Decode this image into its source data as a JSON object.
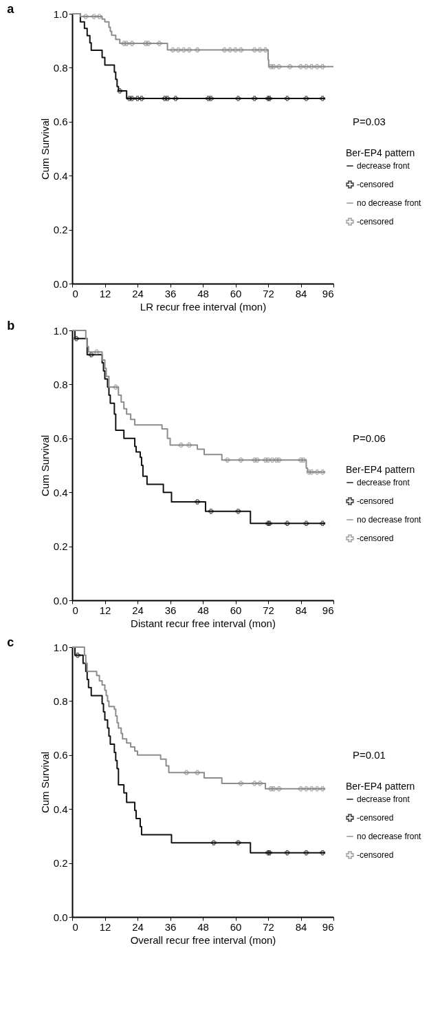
{
  "chart_data": [
    {
      "type": "step",
      "title": "a",
      "xlabel": "LR recur free interval (mon)",
      "ylabel": "Cum Survival",
      "legend_title": "Ber-EP4 pattern",
      "legend": "right",
      "grid": false,
      "annotations": [
        "P=0.03"
      ],
      "xlim": [
        0,
        96
      ],
      "xticks": [
        0,
        12,
        24,
        36,
        48,
        60,
        72,
        84,
        96
      ],
      "ylim": [
        0,
        1
      ],
      "yticks": [
        {
          "value": 0,
          "label": "0.0"
        },
        {
          "value": 0.2,
          "label": "0.2"
        },
        {
          "value": 0.4,
          "label": "0.4"
        },
        {
          "value": 0.6,
          "label": "0.6"
        },
        {
          "value": 0.8,
          "label": "0.8"
        },
        {
          "value": 1,
          "label": "1.0"
        }
      ],
      "series": [
        {
          "name": "decrease front",
          "color": "#111111",
          "x": [
            0,
            3,
            4.5,
            5.5,
            6.5,
            7,
            11,
            12,
            15.5,
            16,
            16.5,
            17,
            20,
            93
          ],
          "values": [
            1.0,
            0.97,
            0.946,
            0.919,
            0.892,
            0.865,
            0.838,
            0.81,
            0.784,
            0.757,
            0.73,
            0.714,
            0.686,
            0.686
          ]
        },
        {
          "name": "-censored",
          "type": "scatter",
          "marker": "cross",
          "color": "#111111",
          "x": [
            17.5,
            21,
            22,
            24,
            25.5,
            34,
            35,
            38,
            50,
            51,
            61,
            67,
            72,
            72.5,
            79,
            86,
            92
          ],
          "values": [
            0.714,
            0.686,
            0.686,
            0.686,
            0.686,
            0.686,
            0.686,
            0.686,
            0.686,
            0.686,
            0.686,
            0.686,
            0.686,
            0.686,
            0.686,
            0.686,
            0.686
          ]
        },
        {
          "name": "no decrease front",
          "color": "#8c8c8c",
          "x": [
            0,
            3,
            11,
            12,
            13.5,
            14,
            14.5,
            16,
            17.5,
            35,
            72,
            72.2,
            96
          ],
          "values": [
            1.0,
            0.99,
            0.98,
            0.97,
            0.95,
            0.935,
            0.92,
            0.905,
            0.89,
            0.866,
            0.83,
            0.804,
            0.804
          ]
        },
        {
          "name": "-censored",
          "type": "scatter",
          "marker": "cross",
          "color": "#8c8c8c",
          "x": [
            5,
            8,
            10,
            19,
            20,
            22,
            27,
            28,
            32,
            37,
            39,
            41,
            43,
            46,
            56,
            58,
            60,
            62,
            67,
            69,
            71,
            73,
            74,
            76,
            80,
            84,
            86,
            88,
            90,
            92
          ],
          "values": [
            0.99,
            0.99,
            0.99,
            0.89,
            0.89,
            0.89,
            0.89,
            0.89,
            0.89,
            0.866,
            0.866,
            0.866,
            0.866,
            0.866,
            0.866,
            0.866,
            0.866,
            0.866,
            0.866,
            0.866,
            0.866,
            0.804,
            0.804,
            0.804,
            0.804,
            0.804,
            0.804,
            0.804,
            0.804,
            0.804
          ]
        }
      ]
    },
    {
      "type": "step",
      "title": "b",
      "xlabel": "Distant recur free interval (mon)",
      "ylabel": "Cum Survival",
      "legend_title": "Ber-EP4 pattern",
      "legend": "right",
      "grid": false,
      "annotations": [
        "P=0.06"
      ],
      "xlim": [
        0,
        96
      ],
      "xticks": [
        0,
        12,
        24,
        36,
        48,
        60,
        72,
        84,
        96
      ],
      "ylim": [
        0,
        1
      ],
      "yticks": [
        {
          "value": 0,
          "label": "0.0"
        },
        {
          "value": 0.2,
          "label": "0.2"
        },
        {
          "value": 0.4,
          "label": "0.4"
        },
        {
          "value": 0.6,
          "label": "0.6"
        },
        {
          "value": 0.8,
          "label": "0.8"
        },
        {
          "value": 1,
          "label": "1.0"
        }
      ],
      "series": [
        {
          "name": "decrease front",
          "color": "#111111",
          "x": [
            0,
            1,
            5.5,
            11,
            11.5,
            12,
            13,
            13.5,
            14,
            15.5,
            16,
            19,
            23,
            23.5,
            25,
            25.5,
            26,
            27.5,
            33.5,
            36.5,
            49,
            65.5,
            93
          ],
          "values": [
            1.0,
            0.97,
            0.91,
            0.88,
            0.85,
            0.82,
            0.79,
            0.76,
            0.73,
            0.69,
            0.63,
            0.6,
            0.57,
            0.55,
            0.53,
            0.5,
            0.46,
            0.43,
            0.4,
            0.365,
            0.33,
            0.285,
            0.285
          ]
        },
        {
          "name": "-censored",
          "type": "scatter",
          "marker": "cross",
          "color": "#111111",
          "x": [
            1.5,
            7,
            46,
            51,
            61,
            72,
            72.5,
            79,
            86,
            92
          ],
          "values": [
            0.97,
            0.91,
            0.365,
            0.33,
            0.33,
            0.285,
            0.285,
            0.285,
            0.285,
            0.285
          ]
        },
        {
          "name": "no decrease front",
          "color": "#8c8c8c",
          "x": [
            0,
            5,
            5.5,
            6,
            11,
            12,
            12.5,
            13.5,
            17,
            18,
            19,
            20,
            21.5,
            23,
            33,
            35,
            36,
            46,
            48.5,
            55,
            86,
            86.5,
            93
          ],
          "values": [
            1.0,
            0.97,
            0.94,
            0.92,
            0.89,
            0.86,
            0.83,
            0.79,
            0.76,
            0.735,
            0.71,
            0.69,
            0.67,
            0.65,
            0.635,
            0.6,
            0.575,
            0.56,
            0.54,
            0.52,
            0.49,
            0.475,
            0.475
          ]
        },
        {
          "name": "-censored",
          "type": "scatter",
          "marker": "cross",
          "color": "#8c8c8c",
          "x": [
            9,
            16,
            40,
            43,
            57,
            62,
            67,
            68,
            71,
            72,
            73.5,
            75,
            76,
            84,
            85,
            87,
            88,
            90,
            92
          ],
          "values": [
            0.92,
            0.79,
            0.575,
            0.575,
            0.52,
            0.52,
            0.52,
            0.52,
            0.52,
            0.52,
            0.52,
            0.52,
            0.52,
            0.52,
            0.52,
            0.475,
            0.475,
            0.475,
            0.475
          ]
        }
      ]
    },
    {
      "type": "step",
      "title": "c",
      "xlabel": "Overall recur free interval (mon)",
      "ylabel": "Cum Survival",
      "legend_title": "Ber-EP4 pattern",
      "legend": "right",
      "grid": false,
      "annotations": [
        "P=0.01"
      ],
      "xlim": [
        0,
        96
      ],
      "xticks": [
        0,
        12,
        24,
        36,
        48,
        60,
        72,
        84,
        96
      ],
      "ylim": [
        0,
        1
      ],
      "yticks": [
        {
          "value": 0,
          "label": "0.0"
        },
        {
          "value": 0.2,
          "label": "0.2"
        },
        {
          "value": 0.4,
          "label": "0.4"
        },
        {
          "value": 0.6,
          "label": "0.6"
        },
        {
          "value": 0.8,
          "label": "0.8"
        },
        {
          "value": 1,
          "label": "1.0"
        }
      ],
      "series": [
        {
          "name": "decrease front",
          "color": "#111111",
          "x": [
            0,
            1,
            4,
            5,
            5.5,
            6,
            7,
            11,
            11.5,
            12,
            13,
            13.5,
            14,
            15.5,
            16,
            16.5,
            17,
            19,
            20,
            23,
            23.5,
            25,
            25.5,
            36.5,
            65.5,
            93
          ],
          "values": [
            1.0,
            0.97,
            0.94,
            0.91,
            0.88,
            0.85,
            0.82,
            0.79,
            0.76,
            0.73,
            0.7,
            0.67,
            0.64,
            0.61,
            0.58,
            0.55,
            0.49,
            0.46,
            0.425,
            0.395,
            0.365,
            0.335,
            0.305,
            0.275,
            0.238,
            0.238
          ]
        },
        {
          "name": "-censored",
          "type": "scatter",
          "marker": "cross",
          "color": "#111111",
          "x": [
            2,
            52,
            61,
            72,
            72.5,
            79,
            86,
            92
          ],
          "values": [
            0.97,
            0.275,
            0.275,
            0.238,
            0.238,
            0.238,
            0.238,
            0.238
          ]
        },
        {
          "name": "no decrease front",
          "color": "#8c8c8c",
          "x": [
            0,
            4.5,
            5,
            5.5,
            9,
            10,
            11,
            12,
            12.5,
            13,
            13.5,
            15.5,
            16,
            16.5,
            17,
            18,
            18.5,
            20,
            21.5,
            23,
            24,
            32.5,
            34.5,
            35.5,
            48.5,
            55,
            71,
            93
          ],
          "values": [
            1.0,
            0.97,
            0.94,
            0.91,
            0.895,
            0.875,
            0.86,
            0.84,
            0.82,
            0.8,
            0.78,
            0.77,
            0.745,
            0.72,
            0.7,
            0.68,
            0.66,
            0.645,
            0.63,
            0.615,
            0.6,
            0.585,
            0.56,
            0.535,
            0.515,
            0.495,
            0.475,
            0.475
          ]
        },
        {
          "name": "-censored",
          "type": "scatter",
          "marker": "cross",
          "color": "#8c8c8c",
          "x": [
            42,
            46,
            62,
            67,
            69,
            73,
            74,
            76,
            84,
            86,
            88,
            90,
            92
          ],
          "values": [
            0.535,
            0.535,
            0.495,
            0.495,
            0.495,
            0.475,
            0.475,
            0.475,
            0.475,
            0.475,
            0.475,
            0.475,
            0.475
          ]
        }
      ]
    }
  ]
}
